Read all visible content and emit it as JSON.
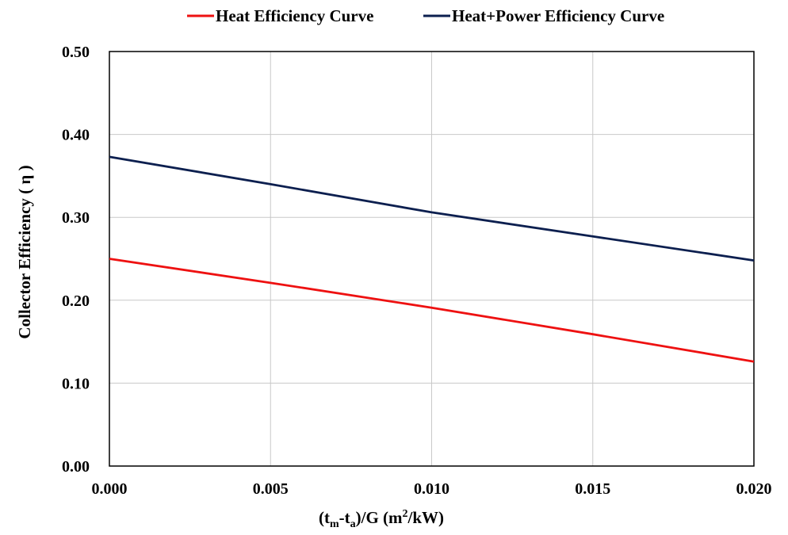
{
  "chart_data": {
    "type": "line",
    "title": "",
    "xlabel": {
      "prefix": "(t",
      "sub1": "m",
      "mid": "-t",
      "sub2": "a",
      "after": ")/G (m",
      "sup": "2",
      "suffix": "/kW)"
    },
    "ylabel": "Collector Efficiency ( η )",
    "xlim": [
      0,
      0.02
    ],
    "ylim": [
      0,
      0.5
    ],
    "xticks": [
      0,
      0.005,
      0.01,
      0.015,
      0.02
    ],
    "xtick_labels": [
      "0.000",
      "0.005",
      "0.010",
      "0.015",
      "0.020"
    ],
    "yticks": [
      0,
      0.1,
      0.2,
      0.3,
      0.4,
      0.5
    ],
    "ytick_labels": [
      "0.00",
      "0.10",
      "0.20",
      "0.30",
      "0.40",
      "0.50"
    ],
    "grid": true,
    "legend_position": "top",
    "series": [
      {
        "name": "Heat Efficiency Curve",
        "color": "#ee1111",
        "x": [
          0,
          0.005,
          0.01,
          0.015,
          0.02
        ],
        "y": [
          0.25,
          0.221,
          0.191,
          0.159,
          0.126
        ]
      },
      {
        "name": "Heat+Power Efficiency Curve",
        "color": "#0c1f4f",
        "x": [
          0,
          0.005,
          0.01,
          0.015,
          0.02
        ],
        "y": [
          0.373,
          0.34,
          0.306,
          0.277,
          0.248
        ]
      }
    ]
  }
}
